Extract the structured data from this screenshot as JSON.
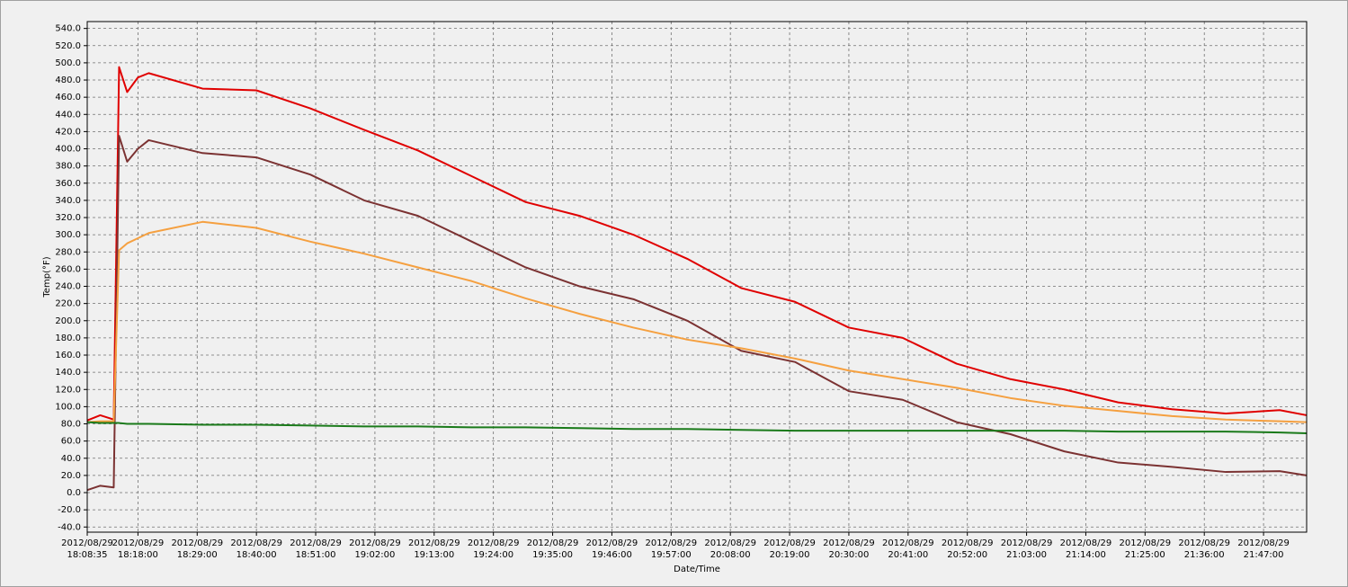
{
  "chart_data": {
    "type": "line",
    "y_label": "Temp(°F)",
    "x_label": "Date/Time",
    "grid": true,
    "x": [
      "2012/08/29 18:08:35",
      "2012/08/29 18:11:00",
      "2012/08/29 18:13:30",
      "2012/08/29 18:14:30",
      "2012/08/29 18:16:00",
      "2012/08/29 18:18:00",
      "2012/08/29 18:20:00",
      "2012/08/29 18:30:00",
      "2012/08/29 18:40:00",
      "2012/08/29 18:50:00",
      "2012/08/29 19:00:00",
      "2012/08/29 19:10:00",
      "2012/08/29 19:20:00",
      "2012/08/29 19:30:00",
      "2012/08/29 19:40:00",
      "2012/08/29 19:50:00",
      "2012/08/29 20:00:00",
      "2012/08/29 20:10:00",
      "2012/08/29 20:20:00",
      "2012/08/29 20:30:00",
      "2012/08/29 20:40:00",
      "2012/08/29 20:50:00",
      "2012/08/29 21:00:00",
      "2012/08/29 21:10:00",
      "2012/08/29 21:20:00",
      "2012/08/29 21:30:00",
      "2012/08/29 21:40:00",
      "2012/08/29 21:50:00",
      "2012/08/29 21:55:00"
    ],
    "series": [
      {
        "color": "#e00000",
        "values": [
          84,
          90,
          85,
          495,
          466,
          483,
          488,
          470,
          468,
          447,
          422,
          398,
          368,
          338,
          322,
          300,
          272,
          238,
          222,
          192,
          180,
          150,
          132,
          120,
          105,
          97,
          92,
          96,
          90
        ]
      },
      {
        "color": "#7b3232",
        "values": [
          3,
          8,
          6,
          415,
          385,
          400,
          410,
          395,
          390,
          370,
          340,
          322,
          292,
          262,
          240,
          225,
          200,
          165,
          152,
          118,
          108,
          82,
          68,
          48,
          35,
          30,
          24,
          25,
          20
        ]
      },
      {
        "color": "#f5a040",
        "values": [
          82,
          83,
          83,
          282,
          290,
          296,
          302,
          315,
          308,
          292,
          278,
          262,
          246,
          226,
          208,
          192,
          178,
          168,
          156,
          142,
          132,
          122,
          110,
          101,
          95,
          89,
          85,
          83,
          82
        ]
      },
      {
        "color": "#1a7a1a",
        "values": [
          82,
          81,
          81,
          81,
          80,
          80,
          80,
          79,
          79,
          78,
          77,
          77,
          76,
          76,
          75,
          74,
          74,
          73,
          72,
          72,
          72,
          72,
          72,
          72,
          71,
          71,
          71,
          70,
          69
        ]
      }
    ],
    "xlim": [
      "2012/08/29 18:08:35",
      "2012/08/29 21:55:00"
    ],
    "xticks": [
      "2012/08/29 18:08:35",
      "2012/08/29 18:18:00",
      "2012/08/29 18:29:00",
      "2012/08/29 18:40:00",
      "2012/08/29 18:51:00",
      "2012/08/29 19:02:00",
      "2012/08/29 19:13:00",
      "2012/08/29 19:24:00",
      "2012/08/29 19:35:00",
      "2012/08/29 19:46:00",
      "2012/08/29 19:57:00",
      "2012/08/29 20:08:00",
      "2012/08/29 20:19:00",
      "2012/08/29 20:30:00",
      "2012/08/29 20:41:00",
      "2012/08/29 20:52:00",
      "2012/08/29 21:03:00",
      "2012/08/29 21:14:00",
      "2012/08/29 21:25:00",
      "2012/08/29 21:36:00",
      "2012/08/29 21:47:00"
    ],
    "ylim": [
      -46,
      548
    ],
    "yticks": [
      {
        "value": -40,
        "label": "-40.0"
      },
      {
        "value": -20,
        "label": "-20.0"
      },
      {
        "value": 0,
        "label": "0.0"
      },
      {
        "value": 20,
        "label": "20.0"
      },
      {
        "value": 40,
        "label": "40.0"
      },
      {
        "value": 60,
        "label": "60.0"
      },
      {
        "value": 80,
        "label": "80.0"
      },
      {
        "value": 100,
        "label": "100.0"
      },
      {
        "value": 120,
        "label": "120.0"
      },
      {
        "value": 140,
        "label": "140.0"
      },
      {
        "value": 160,
        "label": "160.0"
      },
      {
        "value": 180,
        "label": "180.0"
      },
      {
        "value": 200,
        "label": "200.0"
      },
      {
        "value": 220,
        "label": "220.0"
      },
      {
        "value": 240,
        "label": "240.0"
      },
      {
        "value": 260,
        "label": "260.0"
      },
      {
        "value": 280,
        "label": "280.0"
      },
      {
        "value": 300,
        "label": "300.0"
      },
      {
        "value": 320,
        "label": "320.0"
      },
      {
        "value": 340,
        "label": "340.0"
      },
      {
        "value": 360,
        "label": "360.0"
      },
      {
        "value": 380,
        "label": "380.0"
      },
      {
        "value": 400,
        "label": "400.0"
      },
      {
        "value": 420,
        "label": "420.0"
      },
      {
        "value": 440,
        "label": "440.0"
      },
      {
        "value": 460,
        "label": "460.0"
      },
      {
        "value": 480,
        "label": "480.0"
      },
      {
        "value": 500,
        "label": "500.0"
      },
      {
        "value": 520,
        "label": "520.0"
      },
      {
        "value": 540,
        "label": "540.0"
      }
    ]
  }
}
